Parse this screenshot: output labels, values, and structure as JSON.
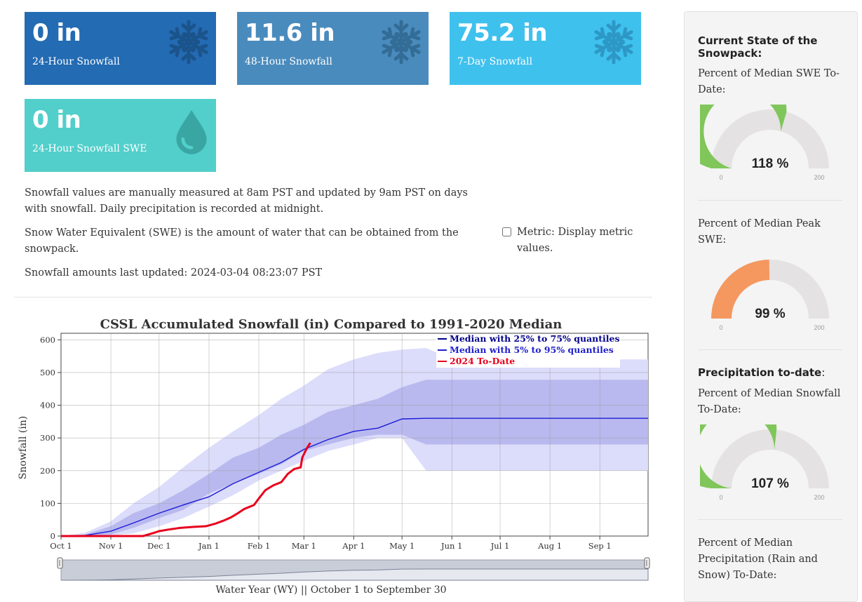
{
  "cards": [
    {
      "value": "0 in",
      "label": "24-Hour Snowfall",
      "color": "#236bb3",
      "icon": "snowflake-icon"
    },
    {
      "value": "11.6 in",
      "label": "48-Hour Snowfall",
      "color": "#4a8bbd",
      "icon": "snowflake-icon"
    },
    {
      "value": "75.2 in",
      "label": "7-Day Snowfall",
      "color": "#3fc1ee",
      "icon": "snowflake-icon"
    },
    {
      "value": "0 in",
      "label": "24-Hour Snowfall SWE",
      "color": "#52cfcb",
      "icon": "water-drop-icon"
    }
  ],
  "notes": {
    "measurement": "Snowfall values are manually measured at 8am PST and updated by 9am PST on days with snowfall. Daily precipitation is recorded at midnight.",
    "swe": "Snow Water Equivalent (SWE) is the amount of water that can be obtained from the snowpack.",
    "updated": "Snowfall amounts last updated: 2024-03-04 08:23:07 PST"
  },
  "metric": {
    "label": "Metric: Display metric values.",
    "checked": false
  },
  "chart_data": {
    "type": "area",
    "title": "CSSL Accumulated Snowfall (in) Compared to 1991-2020 Median",
    "xlabel": "Water Year (WY) || October 1 to September 30",
    "ylabel": "Snowfall (in)",
    "ylim": [
      0,
      620
    ],
    "yticks": [
      0,
      100,
      200,
      300,
      400,
      500,
      600
    ],
    "month_labels": [
      "Oct 1",
      "Nov 1",
      "Dec 1",
      "Jan 1",
      "Feb 1",
      "Mar 1",
      "Apr 1",
      "May 1",
      "Jun 1",
      "Jul 1",
      "Aug 1",
      "Sep 1"
    ],
    "month_days": [
      0,
      31,
      61,
      92,
      123,
      151,
      182,
      212,
      243,
      273,
      304,
      335
    ],
    "day_range": [
      0,
      365
    ],
    "legend": [
      {
        "name": "Median with 25% to 75% quantiles",
        "color": "#00008b"
      },
      {
        "name": "Median with 5% to 95% quantiles",
        "color": "#2020cc"
      },
      {
        "name": "2024 To-Date",
        "color": "#e8001c"
      }
    ],
    "x_days": [
      0,
      15,
      31,
      45,
      61,
      76,
      92,
      107,
      123,
      137,
      151,
      166,
      182,
      197,
      212,
      227,
      243,
      258,
      273,
      288,
      304,
      319,
      335,
      350,
      365
    ],
    "q05": [
      0,
      0,
      2,
      8,
      30,
      55,
      90,
      125,
      170,
      200,
      230,
      260,
      280,
      300,
      300,
      200,
      200,
      200,
      200,
      200,
      200,
      200,
      200,
      200,
      200
    ],
    "q25": [
      0,
      0,
      5,
      25,
      55,
      80,
      130,
      160,
      190,
      220,
      260,
      280,
      300,
      310,
      310,
      280,
      280,
      280,
      280,
      280,
      280,
      280,
      280,
      280,
      280
    ],
    "median": [
      0,
      2,
      15,
      40,
      70,
      95,
      120,
      160,
      195,
      225,
      265,
      295,
      320,
      330,
      358,
      360,
      360,
      360,
      360,
      360,
      360,
      360,
      360,
      360,
      360
    ],
    "q75": [
      0,
      5,
      30,
      70,
      100,
      140,
      190,
      240,
      270,
      310,
      340,
      380,
      400,
      420,
      455,
      478,
      478,
      478,
      478,
      478,
      478,
      478,
      478,
      478,
      478
    ],
    "q95": [
      0,
      10,
      45,
      100,
      150,
      210,
      270,
      320,
      370,
      420,
      460,
      510,
      540,
      560,
      570,
      575,
      540,
      540,
      540,
      540,
      540,
      540,
      540,
      540,
      540
    ],
    "wy2024_days": [
      0,
      37,
      51,
      58,
      61,
      67,
      74,
      82,
      90,
      96,
      101,
      106,
      110,
      114,
      120,
      123,
      127,
      132,
      137,
      141,
      145,
      149,
      150,
      153,
      155
    ],
    "wy2024": [
      0,
      0,
      0,
      10,
      15,
      20,
      25,
      28,
      30,
      38,
      47,
      58,
      70,
      83,
      95,
      115,
      140,
      155,
      165,
      190,
      205,
      210,
      240,
      270,
      285
    ]
  },
  "sidebar": {
    "heading1": "Current State of the Snowpack:",
    "g1_label": "Percent of Median SWE To-Date:",
    "g1_value": "118 %",
    "g1_pct": 118,
    "g1_color": "#80c65a",
    "g2_label": "Percent of Median Peak SWE:",
    "g2_value": "99 %",
    "g2_pct": 99,
    "g2_color": "#f4985f",
    "heading2": "Precipitation to-date",
    "heading2_colon": ":",
    "g3_label": "Percent of Median Snowfall To-Date:",
    "g3_value": "107 %",
    "g3_pct": 107,
    "g3_color": "#80c65a",
    "g4_label": "Percent of Median Precipitation (Rain and Snow) To-Date:",
    "gauge_min": "0",
    "gauge_max": "200"
  }
}
